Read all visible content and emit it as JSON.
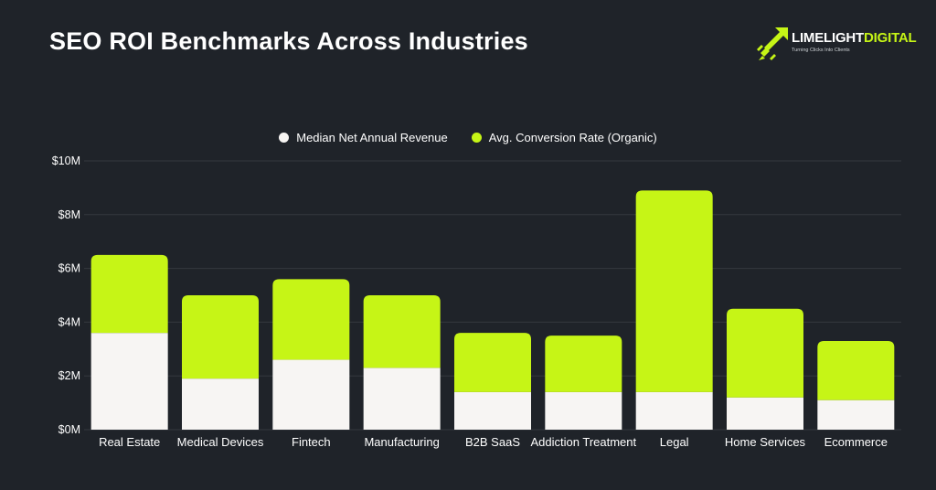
{
  "header": {
    "title": "SEO ROI Benchmarks Across Industries"
  },
  "logo": {
    "word_part1": "LIMELIGHT",
    "word_part2": "DIGITAL",
    "tagline": "Turning Clicks Into Clients",
    "icon": "rocket-arrow-icon"
  },
  "colors": {
    "background": "#1f2329",
    "white_series": "#f7f5f3",
    "green_series": "#c6f516",
    "grid": "#34383e",
    "text": "#ffffff"
  },
  "chart_data": {
    "type": "bar",
    "stacked": true,
    "categories": [
      "Real Estate",
      "Medical Devices",
      "Fintech",
      "Manufacturing",
      "B2B SaaS",
      "Addiction Treatment",
      "Legal",
      "Home Services",
      "Ecommerce"
    ],
    "series": [
      {
        "name": "Median Net Annual Revenue",
        "values": [
          3.6,
          1.9,
          2.6,
          2.3,
          1.4,
          1.4,
          1.4,
          1.2,
          1.1
        ]
      },
      {
        "name": "Avg. Conversion Rate (Organic)",
        "values": [
          2.9,
          3.1,
          3.0,
          2.7,
          2.2,
          2.1,
          7.5,
          3.3,
          2.2
        ]
      }
    ],
    "yticks": [
      "$0M",
      "$2M",
      "$4M",
      "$6M",
      "$8M",
      "$10M"
    ],
    "ytick_values": [
      0,
      2,
      4,
      6,
      8,
      10
    ],
    "ylim": [
      0,
      10
    ],
    "unit": "$M",
    "grid": true,
    "legend_position": "top-center"
  }
}
